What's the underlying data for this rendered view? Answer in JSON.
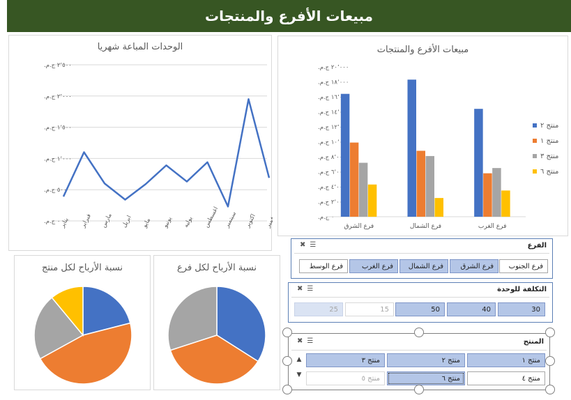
{
  "title": "مبيعات الأفرع والمنتجات",
  "colors": {
    "blue": "#4472c4",
    "orange": "#ed7d31",
    "gray": "#a5a5a5",
    "yellow": "#ffc000",
    "header_green": "#375623"
  },
  "chart_data": [
    {
      "type": "line",
      "title": "الوحدات المباعة شهريا",
      "categories": [
        "يناير",
        "فبراير",
        "مارس",
        "ابريل",
        "مايو",
        "يونيو",
        "يوليه",
        "اغسطس",
        "سبتمبر",
        "اكتوبر",
        "نوفمبر"
      ],
      "y_ticks": [
        "٢٬٥٠٠ ج.م.",
        "٢٬٠٠٠ ج.م.",
        "١٬٥٠٠ ج.م.",
        "١٬٠٠٠ ج.م.",
        "٥٠٠ ج.م.",
        "٠ ج.م."
      ],
      "ylim": [
        0,
        2500
      ],
      "series": [
        {
          "values": [
            390,
            1100,
            600,
            340,
            590,
            890,
            630,
            940,
            230,
            1950,
            690
          ],
          "color": "#4472c4"
        }
      ]
    },
    {
      "type": "bar",
      "title": "مبيعات الأفرع والمنتجات",
      "categories": [
        "فرع الشرق",
        "فرع الشمال",
        "فرع الغرب"
      ],
      "y_ticks": [
        "٢٠٬٠٠٠ ج.م.",
        "١٨٬٠٠٠ ج.م.",
        "١٦٬٠٠٠ ج.م.",
        "١٤٬٠٠٠ ج.م.",
        "١٢٬٠٠٠ ج.م.",
        "١٠٬٠٠٠ ج.م.",
        "٨٬٠٠٠ ج.م.",
        "٦٬٠٠٠ ج.م.",
        "٤٬٠٠٠ ج.م.",
        "٢٬٠٠٠ ج.م.",
        "٠ ج.م."
      ],
      "ylim": [
        0,
        20000
      ],
      "legend_position": "right",
      "series": [
        {
          "name": "منتج ٢",
          "values": [
            16400,
            18300,
            14400
          ],
          "color": "#4472c4"
        },
        {
          "name": "منتج ١",
          "values": [
            9900,
            8800,
            5800
          ],
          "color": "#ed7d31"
        },
        {
          "name": "منتج ٣",
          "values": [
            7200,
            8100,
            6500
          ],
          "color": "#a5a5a5"
        },
        {
          "name": "منتج ٦",
          "values": [
            4300,
            2500,
            3500
          ],
          "color": "#ffc000"
        }
      ]
    },
    {
      "type": "pie",
      "title": "نسبة الأرباح لكل منتج",
      "values": [
        21,
        46,
        22,
        11
      ],
      "colors": [
        "#4472c4",
        "#ed7d31",
        "#a5a5a5",
        "#ffc000"
      ]
    },
    {
      "type": "pie",
      "title": "نسبة الأرباح لكل فرع",
      "values": [
        34,
        36,
        30
      ],
      "colors": [
        "#4472c4",
        "#ed7d31",
        "#a5a5a5"
      ]
    }
  ],
  "slicers": {
    "branch": {
      "title": "الفرع",
      "items": [
        {
          "label": "فرع الجنوب",
          "state": "normal"
        },
        {
          "label": "فرع الشرق",
          "state": "sel"
        },
        {
          "label": "فرع الشمال",
          "state": "sel"
        },
        {
          "label": "فرع الغرب",
          "state": "sel"
        },
        {
          "label": "فرع الوسط",
          "state": "normal"
        }
      ]
    },
    "unit_cost": {
      "title": "التكلفة للوحدة",
      "items": [
        {
          "label": "30",
          "state": "sel"
        },
        {
          "label": "40",
          "state": "sel"
        },
        {
          "label": "50",
          "state": "sel"
        },
        {
          "label": "15",
          "state": "dim"
        },
        {
          "label": "25",
          "state": "dimsel"
        }
      ]
    },
    "product": {
      "title": "المنتج",
      "items": [
        {
          "label": "منتج ١",
          "state": "sel"
        },
        {
          "label": "منتج ٢",
          "state": "sel"
        },
        {
          "label": "منتج ٣",
          "state": "sel"
        },
        {
          "label": "منتج ٤",
          "state": "normal"
        },
        {
          "label": "منتج ٦",
          "state": "sel"
        },
        {
          "label": "منتج ٥",
          "state": "dim"
        }
      ]
    }
  },
  "icons": {
    "clear_filter": "clear-filter-icon",
    "multi_select": "multi-select-icon"
  }
}
